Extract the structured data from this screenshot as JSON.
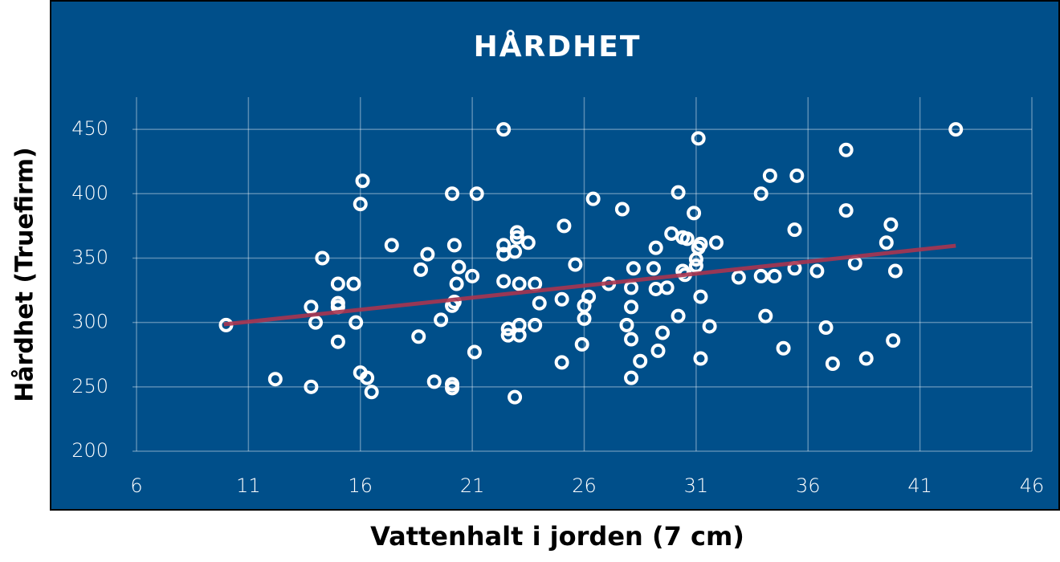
{
  "chart_data": {
    "type": "scatter",
    "title": "HÅRDHET",
    "x_label": "Vattenhalt i jorden (7 cm)",
    "y_label": "Hårdhet (Truefirm)",
    "xlim": [
      6,
      46
    ],
    "xticks": [
      6,
      11,
      16,
      21,
      26,
      31,
      36,
      41,
      46
    ],
    "ylim": [
      200,
      475
    ],
    "yticks": [
      200,
      250,
      300,
      350,
      400,
      450
    ],
    "grid": true,
    "color": "#ffffff",
    "background": "#004f8a",
    "x": [
      10,
      12.2,
      13.8,
      13.8,
      14.0,
      14.3,
      15.0,
      15.0,
      15.0,
      15.0,
      15.7,
      15.8,
      16.1,
      16.0,
      16.0,
      16.3,
      16.5,
      17.4,
      18.7,
      19.0,
      18.6,
      19.3,
      19.6,
      20.1,
      20.2,
      20.4,
      20.3,
      20.1,
      20.2,
      20.1,
      20.1,
      21.0,
      21.2,
      21.1,
      22.4,
      22.4,
      22.4,
      22.4,
      22.9,
      23.0,
      23.0,
      23.5,
      22.6,
      23.1,
      22.6,
      23.1,
      23.1,
      23.8,
      23.8,
      24.0,
      22.9,
      25.1,
      25.0,
      25.0,
      25.6,
      26.0,
      26.2,
      26.0,
      25.9,
      26.4,
      27.1,
      27.7,
      28.2,
      28.1,
      28.1,
      27.9,
      28.1,
      28.5,
      28.1,
      29.1,
      29.2,
      29.2,
      29.7,
      29.5,
      29.3,
      29.9,
      30.2,
      30.4,
      30.6,
      30.4,
      30.5,
      30.9,
      31.0,
      31.1,
      31.2,
      31.0,
      30.2,
      31.1,
      31.2,
      31.2,
      31.6,
      31.9,
      32.9,
      33.9,
      33.9,
      34.1,
      34.3,
      34.5,
      34.9,
      35.4,
      35.5,
      35.4,
      36.4,
      36.8,
      37.1,
      37.7,
      37.7,
      38.1,
      38.6,
      39.7,
      39.5,
      39.9,
      39.8,
      42.6
    ],
    "values": [
      298,
      256,
      312,
      250,
      300,
      350,
      330,
      315,
      312,
      285,
      330,
      300,
      410,
      392,
      261,
      257,
      246,
      360,
      341,
      353,
      289,
      254,
      302,
      400,
      360,
      343,
      330,
      313,
      316,
      252,
      249,
      336,
      400,
      277,
      450,
      360,
      353,
      332,
      355,
      370,
      366,
      362,
      295,
      298,
      290,
      290,
      330,
      330,
      298,
      315,
      242,
      375,
      318,
      269,
      345,
      313,
      320,
      303,
      283,
      396,
      330,
      388,
      342,
      327,
      312,
      298,
      287,
      270,
      257,
      342,
      358,
      326,
      327,
      292,
      278,
      369,
      401,
      366,
      365,
      340,
      337,
      385,
      349,
      358,
      361,
      344,
      305,
      443,
      320,
      272,
      297,
      362,
      335,
      400,
      336,
      305,
      414,
      336,
      280,
      372,
      414,
      342,
      340,
      296,
      268,
      434,
      387,
      346,
      272,
      376,
      362,
      340,
      286,
      450
    ],
    "trendline": {
      "x": [
        9.9,
        42.6
      ],
      "values": [
        298.5,
        359.6
      ],
      "color": "#a8344f"
    }
  }
}
